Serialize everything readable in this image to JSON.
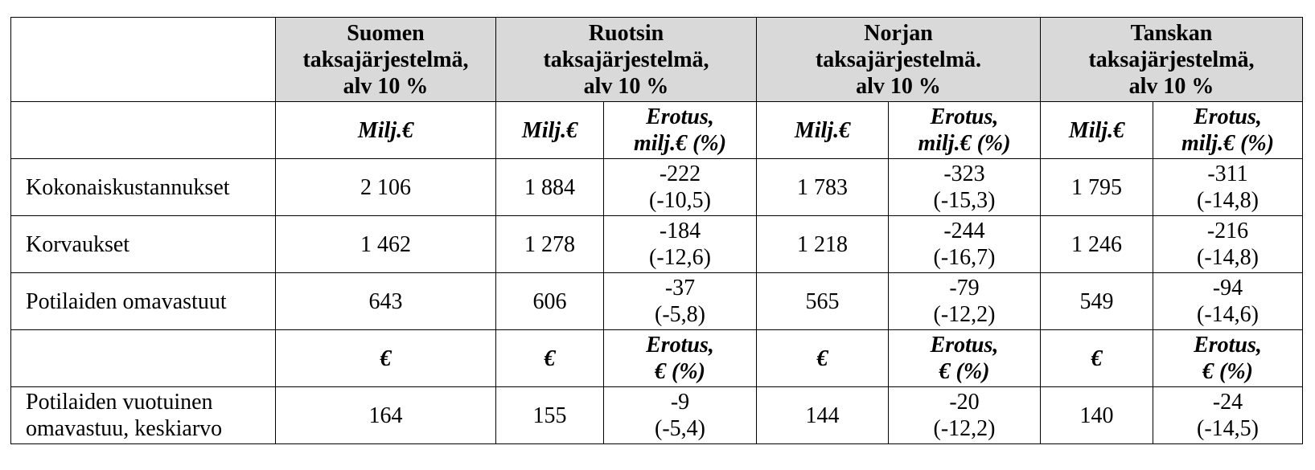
{
  "table": {
    "header": [
      [
        "Suomen",
        "taksajärjestelmä,",
        "alv 10 %"
      ],
      [
        "Ruotsin",
        "taksajärjestelmä,",
        "alv 10 %"
      ],
      [
        "Norjan",
        "taksajärjestelmä.",
        "alv 10 %"
      ],
      [
        "Tanskan",
        "taksajärjestelmä,",
        "alv 10 %"
      ]
    ],
    "rows": [
      {
        "kind": "units",
        "label": [],
        "cells": [
          [
            "Milj.€"
          ],
          [
            "Milj.€"
          ],
          [
            "Erotus,",
            "milj.€ (%)"
          ],
          [
            "Milj.€"
          ],
          [
            "Erotus,",
            "milj.€ (%)"
          ],
          [
            "Milj.€"
          ],
          [
            "Erotus,",
            "milj.€ (%)"
          ]
        ]
      },
      {
        "kind": "data",
        "label": [
          "Kokonaiskustannukset"
        ],
        "cells": [
          [
            "2 106"
          ],
          [
            "1 884"
          ],
          [
            "-222",
            "(-10,5)"
          ],
          [
            "1 783"
          ],
          [
            "-323",
            "(-15,3)"
          ],
          [
            "1 795"
          ],
          [
            "-311",
            "(-14,8)"
          ]
        ]
      },
      {
        "kind": "data",
        "label": [
          "Korvaukset"
        ],
        "cells": [
          [
            "1 462"
          ],
          [
            "1 278"
          ],
          [
            "-184",
            "(-12,6)"
          ],
          [
            "1 218"
          ],
          [
            "-244",
            "(-16,7)"
          ],
          [
            "1 246"
          ],
          [
            "-216",
            "(-14,8)"
          ]
        ]
      },
      {
        "kind": "data",
        "label": [
          "Potilaiden omavastuut"
        ],
        "cells": [
          [
            "643"
          ],
          [
            "606"
          ],
          [
            "-37",
            "(-5,8)"
          ],
          [
            "565"
          ],
          [
            "-79",
            "(-12,2)"
          ],
          [
            "549"
          ],
          [
            "-94",
            "(-14,6)"
          ]
        ]
      },
      {
        "kind": "units",
        "label": [],
        "cells": [
          [
            "€"
          ],
          [
            "€"
          ],
          [
            "Erotus,",
            "€ (%)"
          ],
          [
            "€"
          ],
          [
            "Erotus,",
            "€ (%)"
          ],
          [
            "€"
          ],
          [
            "Erotus,",
            "€ (%)"
          ]
        ]
      },
      {
        "kind": "data",
        "label": [
          "Potilaiden vuotuinen",
          "omavastuu, keskiarvo"
        ],
        "cells": [
          [
            "164"
          ],
          [
            "155"
          ],
          [
            "-9",
            "(-5,4)"
          ],
          [
            "144"
          ],
          [
            "-20",
            "(-12,2)"
          ],
          [
            "140"
          ],
          [
            "-24",
            "(-14,5)"
          ]
        ]
      }
    ]
  }
}
